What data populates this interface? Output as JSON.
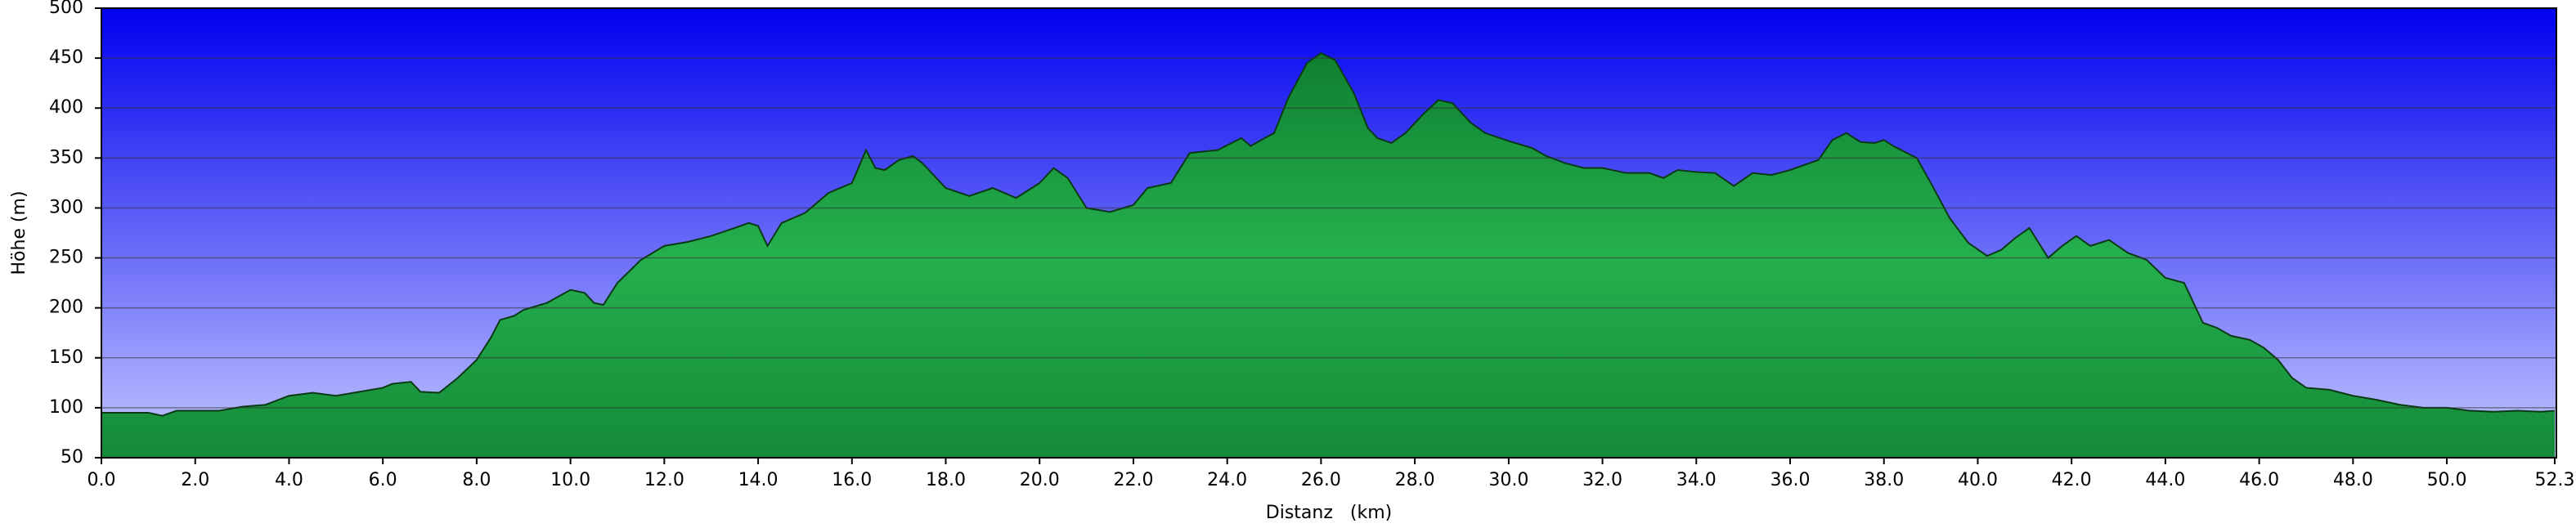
{
  "chart_data": {
    "type": "area",
    "x_label": "Distanz   (km)",
    "y_label": "Höhe (m)",
    "x": [
      0,
      1,
      1.3,
      1.6,
      2,
      2.5,
      3,
      3.5,
      4,
      4.5,
      5,
      5.5,
      6,
      6.2,
      6.6,
      6.8,
      7.2,
      7.6,
      8,
      8.3,
      8.5,
      8.8,
      9,
      9.5,
      10,
      10.3,
      10.5,
      10.7,
      11,
      11.5,
      12,
      12.5,
      13,
      13.5,
      13.8,
      14,
      14.2,
      14.5,
      15,
      15.5,
      16,
      16.3,
      16.5,
      16.7,
      17,
      17.3,
      17.5,
      18,
      18.5,
      19,
      19.5,
      20,
      20.3,
      20.6,
      21,
      21.5,
      22,
      22.3,
      22.8,
      23.2,
      23.8,
      24.3,
      24.5,
      24.8,
      25,
      25.3,
      25.7,
      26,
      26.3,
      26.7,
      27,
      27.2,
      27.5,
      27.8,
      28.2,
      28.5,
      28.8,
      29.2,
      29.5,
      30,
      30.5,
      30.8,
      31.2,
      31.6,
      32,
      32.5,
      33,
      33.3,
      33.6,
      34,
      34.4,
      34.8,
      35.2,
      35.6,
      36,
      36.6,
      36.9,
      37.2,
      37.5,
      37.8,
      38,
      38.2,
      38.7,
      39,
      39.4,
      39.8,
      40.2,
      40.5,
      40.8,
      41.1,
      41.5,
      41.8,
      42.1,
      42.4,
      42.8,
      43.2,
      43.6,
      44,
      44.4,
      44.8,
      45.1,
      45.4,
      45.8,
      46.1,
      46.4,
      46.7,
      47,
      47.5,
      48,
      48.5,
      49,
      49.5,
      50,
      50.5,
      51,
      51.5,
      52,
      52.3
    ],
    "values": [
      95,
      95,
      92,
      97,
      97,
      97,
      101,
      103,
      112,
      115,
      112,
      116,
      120,
      124,
      126,
      116,
      115,
      130,
      148,
      170,
      188,
      192,
      198,
      205,
      218,
      215,
      205,
      203,
      225,
      248,
      262,
      266,
      272,
      280,
      285,
      282,
      262,
      285,
      295,
      315,
      325,
      358,
      340,
      338,
      348,
      352,
      345,
      320,
      312,
      320,
      310,
      325,
      340,
      330,
      300,
      296,
      303,
      320,
      325,
      355,
      358,
      370,
      362,
      370,
      375,
      410,
      445,
      455,
      448,
      415,
      380,
      370,
      365,
      375,
      395,
      408,
      405,
      385,
      375,
      367,
      360,
      352,
      345,
      340,
      340,
      335,
      335,
      330,
      338,
      336,
      335,
      322,
      335,
      333,
      338,
      348,
      368,
      375,
      366,
      365,
      368,
      362,
      350,
      325,
      290,
      265,
      252,
      258,
      270,
      280,
      250,
      262,
      272,
      262,
      268,
      255,
      248,
      230,
      225,
      185,
      180,
      172,
      168,
      160,
      148,
      130,
      120,
      118,
      112,
      108,
      103,
      100,
      100,
      97,
      96,
      97,
      96,
      97
    ],
    "color": "#1f9a42",
    "xlim": [
      0,
      52.3
    ],
    "ylim": [
      50,
      500
    ],
    "xticks": [
      {
        "value": 0,
        "label": "0.0"
      },
      {
        "value": 2,
        "label": "2.0"
      },
      {
        "value": 4,
        "label": "4.0"
      },
      {
        "value": 6,
        "label": "6.0"
      },
      {
        "value": 8,
        "label": "8.0"
      },
      {
        "value": 10,
        "label": "10.0"
      },
      {
        "value": 12,
        "label": "12.0"
      },
      {
        "value": 14,
        "label": "14.0"
      },
      {
        "value": 16,
        "label": "16.0"
      },
      {
        "value": 18,
        "label": "18.0"
      },
      {
        "value": 20,
        "label": "20.0"
      },
      {
        "value": 22,
        "label": "22.0"
      },
      {
        "value": 24,
        "label": "24.0"
      },
      {
        "value": 26,
        "label": "26.0"
      },
      {
        "value": 28,
        "label": "28.0"
      },
      {
        "value": 30,
        "label": "30.0"
      },
      {
        "value": 32,
        "label": "32.0"
      },
      {
        "value": 34,
        "label": "34.0"
      },
      {
        "value": 36,
        "label": "36.0"
      },
      {
        "value": 38,
        "label": "38.0"
      },
      {
        "value": 40,
        "label": "40.0"
      },
      {
        "value": 42,
        "label": "42.0"
      },
      {
        "value": 44,
        "label": "44.0"
      },
      {
        "value": 46,
        "label": "46.0"
      },
      {
        "value": 48,
        "label": "48.0"
      },
      {
        "value": 50,
        "label": "50.0"
      },
      {
        "value": 52.3,
        "label": "52.3"
      }
    ],
    "yticks": [
      50,
      100,
      150,
      200,
      250,
      300,
      350,
      400,
      450,
      500
    ],
    "grid": true
  }
}
